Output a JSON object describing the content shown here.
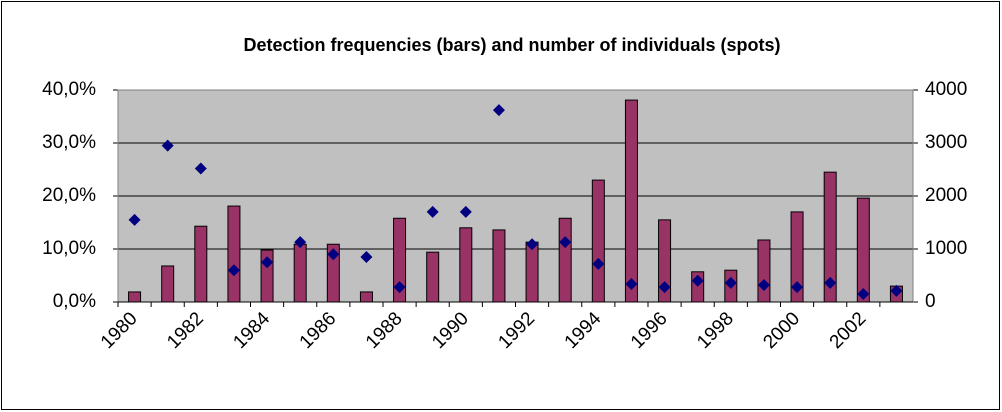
{
  "chart_data": {
    "type": "bar",
    "title": "Detection frequencies (bars) and number of individuals (spots)",
    "categories": [
      "1980",
      null,
      "1982",
      null,
      "1984",
      null,
      "1986",
      null,
      "1988",
      null,
      "1990",
      null,
      "1992",
      null,
      "1994",
      null,
      "1996",
      null,
      "1998",
      null,
      "2000",
      null,
      "2002",
      null
    ],
    "series": [
      {
        "type": "bar",
        "color": "#993366",
        "values": [
          1.9,
          6.8,
          14.3,
          18.1,
          9.8,
          10.9,
          10.9,
          1.9,
          15.8,
          9.4,
          14.0,
          13.6,
          11.3,
          15.8,
          23.0,
          38.1,
          15.5,
          5.7,
          6.0,
          11.7,
          17.0,
          24.5,
          19.6,
          3.0
        ]
      },
      {
        "type": "scatter",
        "color": "#000080",
        "axis": "y2",
        "values": [
          1550,
          2950,
          2520,
          600,
          750,
          1130,
          900,
          850,
          280,
          1700,
          1700,
          3620,
          1090,
          1130,
          720,
          340,
          280,
          400,
          360,
          320,
          280,
          360,
          150,
          210
        ]
      }
    ],
    "ylim": [
      0,
      40
    ],
    "yticks": [
      {
        "value": 0,
        "label": "0,0%"
      },
      {
        "value": 10,
        "label": "10,0%"
      },
      {
        "value": 20,
        "label": "20,0%"
      },
      {
        "value": 30,
        "label": "30,0%"
      },
      {
        "value": 40,
        "label": "40,0%"
      }
    ],
    "y2lim": [
      0,
      4000
    ],
    "y2ticks": [
      0,
      1000,
      2000,
      3000,
      4000
    ],
    "grid": true,
    "plot_background": "#c0c0c0"
  }
}
